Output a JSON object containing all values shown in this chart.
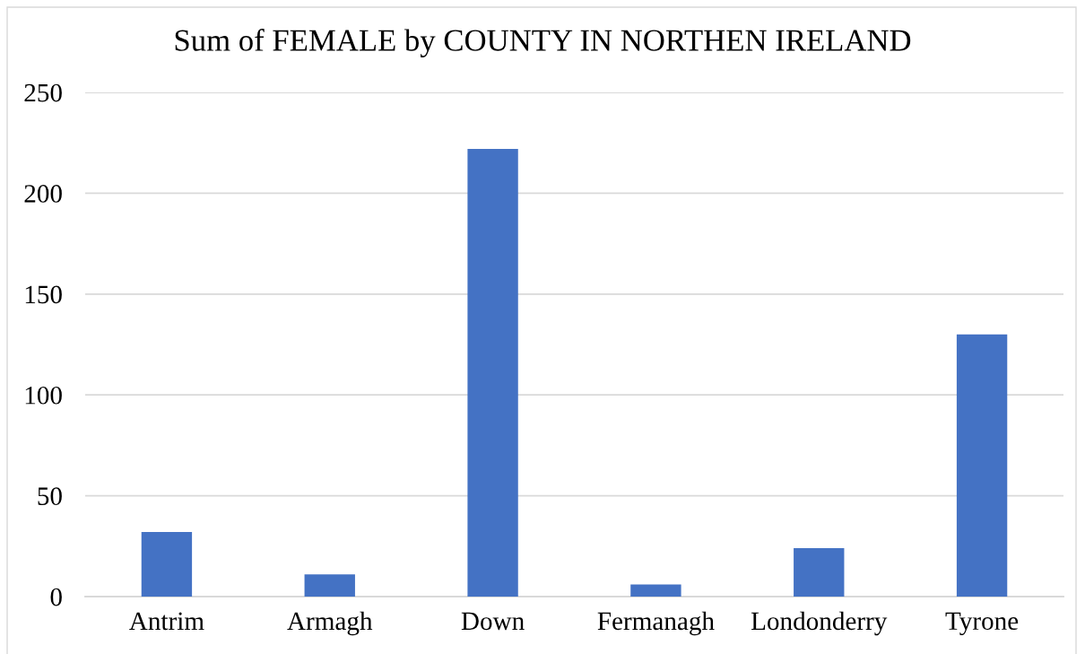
{
  "chart_data": {
    "type": "bar",
    "title": "Sum of FEMALE by COUNTY IN NORTHEN IRELAND",
    "categories": [
      "Antrim",
      "Armagh",
      "Down",
      "Fermanagh",
      "Londonderry",
      "Tyrone"
    ],
    "values": [
      32,
      11,
      222,
      6,
      24,
      130
    ],
    "color": "#4472c4",
    "ylim": [
      0,
      250
    ],
    "yticks": [
      0,
      50,
      100,
      150,
      200,
      250
    ],
    "grid": "y",
    "legend": false
  }
}
